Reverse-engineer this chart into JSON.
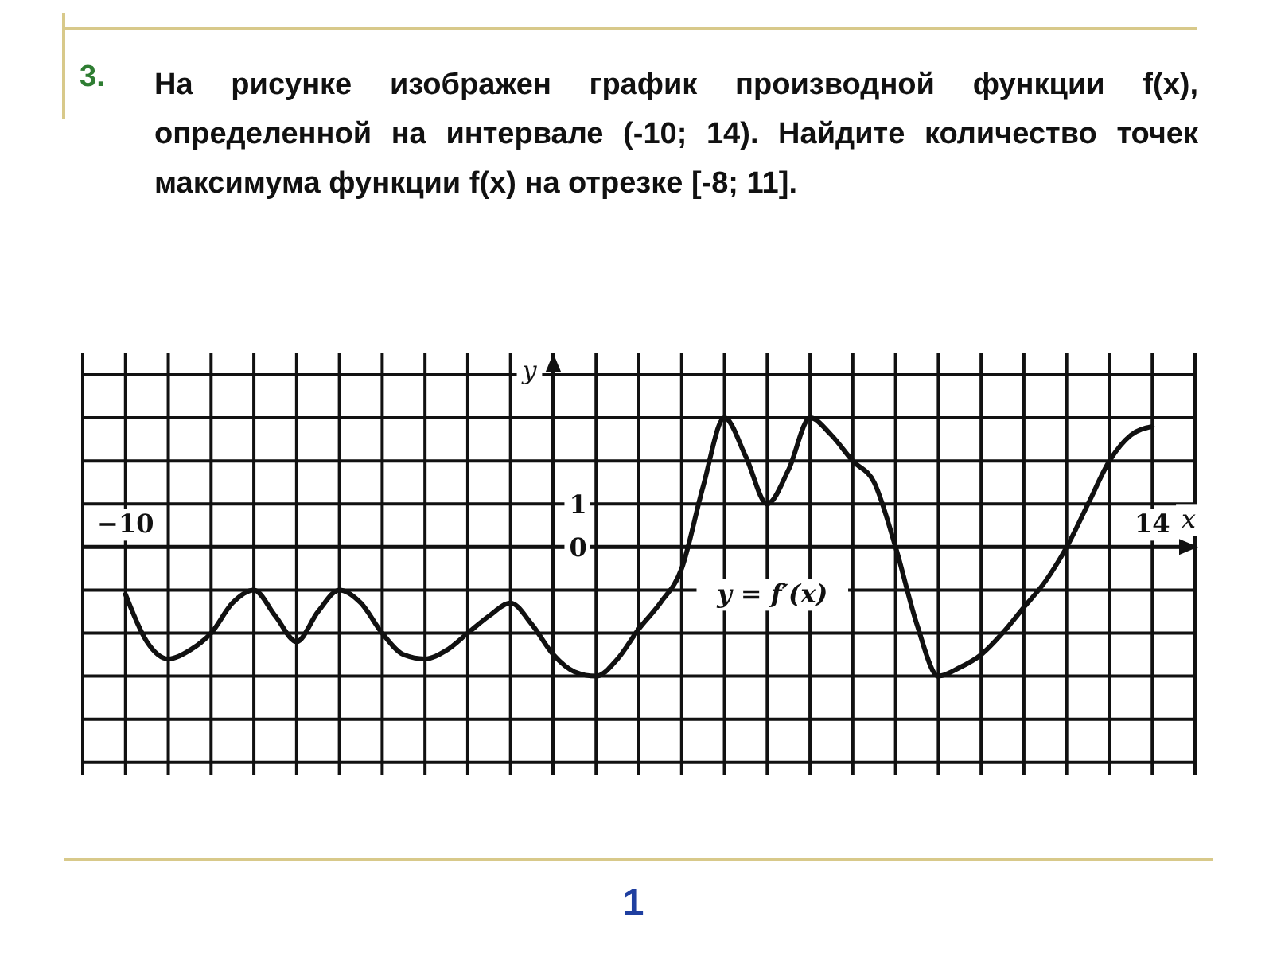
{
  "chart_data": {
    "type": "line",
    "title": "3. На рисунке изображен график производной функции f(x), определенной на интервале (-10; 14). Найдите количество точек максимума функции f(x) на отрезке [-8; 11].",
    "xlabel": "x",
    "ylabel": "y",
    "annotations": [
      "y = f′(x)",
      "1"
    ],
    "x": [
      -10,
      -9.5,
      -9,
      -8.5,
      -8,
      -7.5,
      -7,
      -6.5,
      -6,
      -5.5,
      -5,
      -4.5,
      -4,
      -3.5,
      -3,
      -2.5,
      -2,
      -1.5,
      -1,
      -0.5,
      0,
      0.5,
      1,
      1.5,
      2,
      2.5,
      3,
      3.5,
      4,
      4.5,
      5,
      5.5,
      6,
      6.5,
      7,
      7.5,
      8,
      8.5,
      9,
      9.5,
      10,
      10.5,
      11,
      11.5,
      12,
      12.5,
      13,
      13.5,
      14
    ],
    "series": [
      {
        "color": "#111111",
        "values": [
          -1.1,
          -2.2,
          -2.6,
          -2.4,
          -2,
          -1.3,
          -1,
          -1.6,
          -2.2,
          -1.5,
          -1,
          -1.3,
          -2,
          -2.5,
          -2.6,
          -2.4,
          -2,
          -1.6,
          -1.3,
          -1.8,
          -2.5,
          -2.9,
          -3,
          -2.6,
          -1.9,
          -1.3,
          -0.5,
          1.4,
          3,
          2.1,
          1,
          1.8,
          3,
          2.6,
          2,
          1.5,
          0,
          -1.8,
          -3,
          -2.8,
          -2.5,
          -2,
          -1.4,
          -0.8,
          0,
          1,
          2,
          2.6,
          2.8
        ]
      }
    ],
    "xlim": [
      -11,
      15
    ],
    "ylim": [
      -5.3,
      4.5
    ],
    "xticks": [
      {
        "value": -11,
        "label": null
      },
      {
        "value": -10,
        "label": "−10"
      },
      {
        "value": -9,
        "label": null
      },
      {
        "value": -8,
        "label": null
      },
      {
        "value": -7,
        "label": null
      },
      {
        "value": -6,
        "label": null
      },
      {
        "value": -5,
        "label": null
      },
      {
        "value": -4,
        "label": null
      },
      {
        "value": -3,
        "label": null
      },
      {
        "value": -2,
        "label": null
      },
      {
        "value": -1,
        "label": null
      },
      {
        "value": 0,
        "label": null
      },
      {
        "value": 1,
        "label": null
      },
      {
        "value": 2,
        "label": null
      },
      {
        "value": 3,
        "label": null
      },
      {
        "value": 4,
        "label": null
      },
      {
        "value": 5,
        "label": null
      },
      {
        "value": 6,
        "label": null
      },
      {
        "value": 7,
        "label": null
      },
      {
        "value": 8,
        "label": null
      },
      {
        "value": 9,
        "label": null
      },
      {
        "value": 10,
        "label": null
      },
      {
        "value": 11,
        "label": null
      },
      {
        "value": 12,
        "label": null
      },
      {
        "value": 13,
        "label": null
      },
      {
        "value": 14,
        "label": "14"
      },
      {
        "value": 15,
        "label": null
      }
    ],
    "yticks": [
      {
        "value": -5,
        "label": null
      },
      {
        "value": -4,
        "label": null
      },
      {
        "value": -3,
        "label": null
      },
      {
        "value": -2,
        "label": null
      },
      {
        "value": -1,
        "label": null
      },
      {
        "value": 0,
        "label": "0"
      },
      {
        "value": 1,
        "label": "1"
      },
      {
        "value": 2,
        "label": null
      },
      {
        "value": 3,
        "label": null
      },
      {
        "value": 4,
        "label": null
      }
    ],
    "grid": true,
    "line_style": "solid"
  }
}
